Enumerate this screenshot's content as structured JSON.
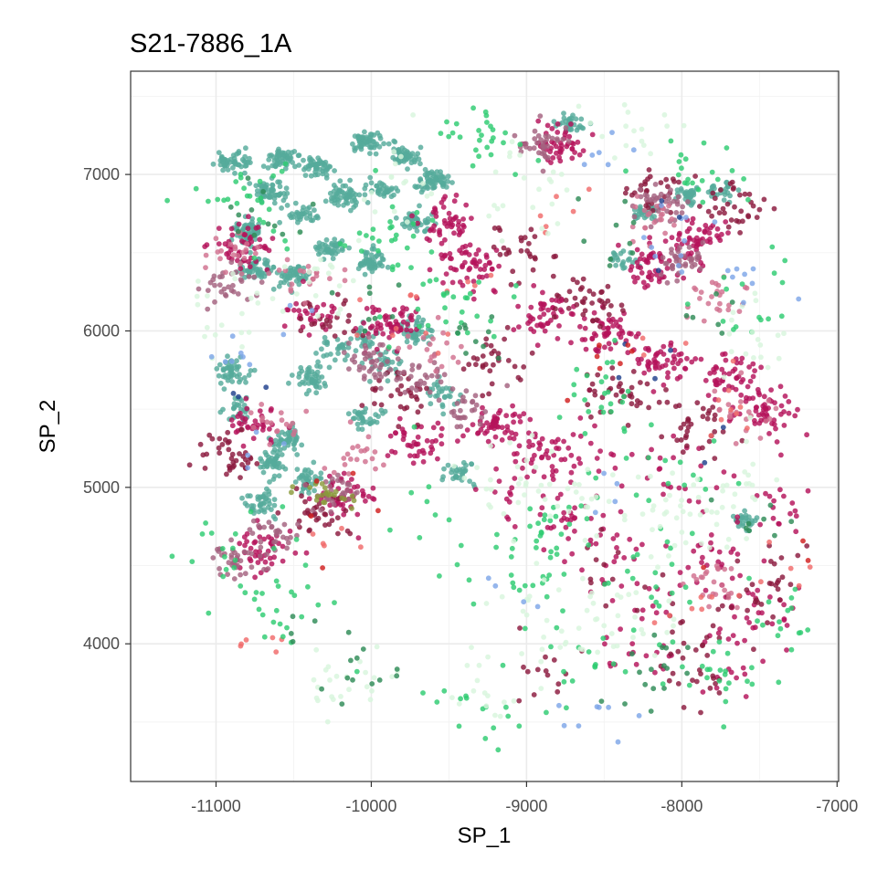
{
  "chart_data": {
    "type": "scatter",
    "title": "S21-7886_1A",
    "xlabel": "SP_1",
    "ylabel": "SP_2",
    "xlim": [
      -11550,
      -6990
    ],
    "ylim": [
      3120,
      7660
    ],
    "x_ticks": [
      -11000,
      -10000,
      -9000,
      -8000,
      -7000
    ],
    "x_tick_labels": [
      "-11000",
      "-10000",
      "-9000",
      "-8000",
      "-7000"
    ],
    "y_ticks": [
      4000,
      5000,
      6000,
      7000
    ],
    "y_tick_labels": [
      "4000",
      "5000",
      "6000",
      "7000"
    ],
    "x_minor_ticks": [
      -10500,
      -9500,
      -8500,
      -7500
    ],
    "y_minor_ticks": [
      3500,
      4500,
      5500,
      6500,
      7500
    ],
    "grid": true,
    "legend": "none",
    "palette": {
      "teal": "#56ab9b",
      "crimson": "#b5125a",
      "maroon": "#8b1a3e",
      "mauve": "#a3627f",
      "pink": "#d1708f",
      "salmon": "#f06a6a",
      "green": "#2ecc71",
      "mint": "#d8f5dd",
      "darkgreen": "#2e8b57",
      "blue": "#7ea6e8",
      "navy": "#1f3f8c",
      "olive": "#8a9a3a",
      "red": "#d11f1f"
    },
    "series": [
      {
        "color_key": "teal",
        "clusters": [
          {
            "points": [
              [
                -10890,
                7080
              ],
              [
                -10580,
                7100
              ],
              [
                -10360,
                7060
              ],
              [
                -10040,
                7210
              ],
              [
                -9800,
                7120
              ],
              [
                -9600,
                6950
              ],
              [
                -10180,
                6860
              ],
              [
                -10450,
                6750
              ],
              [
                -10800,
                6640
              ],
              [
                -10500,
                6350
              ],
              [
                -10250,
                6520
              ],
              [
                -10000,
                6450
              ],
              [
                -9700,
                6700
              ],
              [
                -9920,
                6900
              ],
              [
                -10650,
                6890
              ],
              [
                -10750,
                6400
              ]
            ],
            "n": 800,
            "sx": 55,
            "sy": 35
          },
          {
            "points": [
              [
                -10050,
                5950
              ],
              [
                -9900,
                5800
              ],
              [
                -10250,
                5900
              ],
              [
                -9700,
                6000
              ],
              [
                -10400,
                5700
              ],
              [
                -9550,
                5600
              ],
              [
                -9450,
                5100
              ],
              [
                -10050,
                5450
              ]
            ],
            "n": 260,
            "sx": 55,
            "sy": 40
          },
          {
            "points": [
              [
                -10550,
                5300
              ],
              [
                -10700,
                4900
              ],
              [
                -10850,
                5500
              ],
              [
                -10900,
                5750
              ],
              [
                -10400,
                5050
              ],
              [
                -10650,
                5150
              ]
            ],
            "n": 240,
            "sx": 45,
            "sy": 45
          },
          {
            "points": [
              [
                -8700,
                7330
              ],
              [
                -8250,
                6760
              ],
              [
                -7950,
                6870
              ],
              [
                -7750,
                6900
              ],
              [
                -8400,
                6450
              ],
              [
                -7600,
                4780
              ]
            ],
            "n": 170,
            "sx": 45,
            "sy": 30
          }
        ]
      },
      {
        "color_key": "crimson",
        "clusters": [
          {
            "points": [
              [
                -10850,
                6550
              ],
              [
                -10400,
                6100
              ],
              [
                -9900,
                6050
              ],
              [
                -9350,
                6400
              ],
              [
                -8900,
                6100
              ],
              [
                -8500,
                6000
              ],
              [
                -8100,
                5800
              ],
              [
                -7700,
                5700
              ],
              [
                -7500,
                5500
              ],
              [
                -10200,
                4950
              ],
              [
                -10700,
                4600
              ],
              [
                -8800,
                7200
              ],
              [
                -8200,
                6400
              ],
              [
                -7900,
                6600
              ],
              [
                -9200,
                5400
              ],
              [
                -8900,
                5200
              ],
              [
                -10750,
                5400
              ],
              [
                -9500,
                6700
              ],
              [
                -9700,
                5300
              ]
            ],
            "n": 900,
            "sx": 95,
            "sy": 75
          },
          {
            "points": [
              [
                -8200,
                4300
              ],
              [
                -7500,
                4200
              ],
              [
                -7700,
                3900
              ],
              [
                -8300,
                3900
              ],
              [
                -7800,
                4600
              ],
              [
                -8500,
                4600
              ],
              [
                -7400,
                4900
              ],
              [
                -8000,
                5100
              ],
              [
                -8800,
                4800
              ],
              [
                -9100,
                4900
              ],
              [
                -8600,
                5300
              ],
              [
                -7350,
                5400
              ]
            ],
            "n": 240,
            "sx": 150,
            "sy": 120
          }
        ]
      },
      {
        "color_key": "maroon",
        "clusters": [
          {
            "points": [
              [
                -10300,
                6100
              ],
              [
                -9800,
                5600
              ],
              [
                -9200,
                5800
              ],
              [
                -8600,
                6200
              ],
              [
                -8150,
                6900
              ],
              [
                -7650,
                6800
              ],
              [
                -10900,
                5200
              ],
              [
                -10350,
                4850
              ],
              [
                -7900,
                5400
              ],
              [
                -8400,
                5600
              ],
              [
                -9000,
                6500
              ]
            ],
            "n": 360,
            "sx": 110,
            "sy": 90
          },
          {
            "points": [
              [
                -7600,
                4200
              ],
              [
                -8000,
                4000
              ],
              [
                -8500,
                4500
              ],
              [
                -7400,
                4400
              ],
              [
                -8900,
                3850
              ],
              [
                -7800,
                3750
              ]
            ],
            "n": 90,
            "sx": 150,
            "sy": 130
          }
        ]
      },
      {
        "color_key": "mauve",
        "clusters": [
          {
            "points": [
              [
                -10250,
                4950
              ],
              [
                -10600,
                4700
              ],
              [
                -10850,
                4550
              ],
              [
                -10000,
                5800
              ],
              [
                -9700,
                5700
              ],
              [
                -8900,
                7200
              ],
              [
                -8150,
                6800
              ],
              [
                -8000,
                6450
              ],
              [
                -10900,
                6300
              ],
              [
                -9400,
                5500
              ]
            ],
            "n": 330,
            "sx": 85,
            "sy": 65
          }
        ]
      },
      {
        "color_key": "pink",
        "clusters": [
          {
            "points": [
              [
                -10900,
                6500
              ],
              [
                -10600,
                5400
              ],
              [
                -10100,
                5200
              ],
              [
                -9600,
                5900
              ],
              [
                -8200,
                6700
              ],
              [
                -7800,
                6200
              ],
              [
                -10400,
                6300
              ],
              [
                -7600,
                5500
              ],
              [
                -7800,
                4400
              ]
            ],
            "n": 190,
            "sx": 100,
            "sy": 80
          }
        ]
      },
      {
        "color_key": "salmon",
        "clusters": [
          {
            "points": [
              [
                -10200,
                4700
              ],
              [
                -9900,
                6100
              ],
              [
                -8800,
                6800
              ],
              [
                -8300,
                5900
              ],
              [
                -7700,
                5500
              ],
              [
                -10800,
                3970
              ],
              [
                -8000,
                4300
              ],
              [
                -7250,
                4500
              ],
              [
                -9400,
                6200
              ]
            ],
            "n": 55,
            "sx": 150,
            "sy": 120
          }
        ]
      },
      {
        "color_key": "green",
        "clusters": [
          {
            "points": [
              [
                -10800,
                6800
              ],
              [
                -9900,
                6600
              ],
              [
                -9300,
                7250
              ],
              [
                -9500,
                6100
              ],
              [
                -8500,
                5500
              ],
              [
                -8000,
                5000
              ],
              [
                -9000,
                4500
              ],
              [
                -8700,
                3900
              ],
              [
                -8200,
                4400
              ],
              [
                -9300,
                3600
              ],
              [
                -7800,
                3800
              ],
              [
                -7300,
                4100
              ],
              [
                -10500,
                4200
              ],
              [
                -10900,
                4600
              ],
              [
                -7600,
                6200
              ],
              [
                -7900,
                7000
              ],
              [
                -9700,
                4900
              ],
              [
                -8800,
                4700
              ]
            ],
            "n": 380,
            "sx": 170,
            "sy": 150
          }
        ]
      },
      {
        "color_key": "mint",
        "clusters": [
          {
            "points": [
              [
                -8600,
                4800
              ],
              [
                -8300,
                4200
              ],
              [
                -8900,
                4200
              ],
              [
                -9200,
                3800
              ],
              [
                -8000,
                4800
              ],
              [
                -7700,
                5000
              ],
              [
                -10300,
                6400
              ],
              [
                -9800,
                6900
              ],
              [
                -9000,
                6900
              ],
              [
                -8400,
                7300
              ],
              [
                -10900,
                6100
              ],
              [
                -7500,
                6000
              ],
              [
                -10200,
                3780
              ],
              [
                -9100,
                5000
              ]
            ],
            "n": 300,
            "sx": 170,
            "sy": 150
          }
        ]
      },
      {
        "color_key": "darkgreen",
        "clusters": [
          {
            "points": [
              [
                -10700,
                6700
              ],
              [
                -10000,
                6200
              ],
              [
                -8400,
                6600
              ],
              [
                -7800,
                6100
              ],
              [
                -8200,
                3800
              ],
              [
                -10300,
                4050
              ],
              [
                -10050,
                3800
              ],
              [
                -9300,
                5900
              ],
              [
                -7500,
                4800
              ]
            ],
            "n": 85,
            "sx": 140,
            "sy": 120
          }
        ]
      },
      {
        "color_key": "blue",
        "clusters": [
          {
            "points": [
              [
                -8200,
                6500
              ],
              [
                -7900,
                6700
              ],
              [
                -10900,
                5900
              ],
              [
                -10400,
                6100
              ],
              [
                -8600,
                5000
              ],
              [
                -9100,
                4350
              ],
              [
                -8550,
                3550
              ],
              [
                -8500,
                7150
              ],
              [
                -7550,
                6350
              ],
              [
                -10750,
                5200
              ]
            ],
            "n": 55,
            "sx": 110,
            "sy": 90
          }
        ]
      },
      {
        "color_key": "navy",
        "clusters": [
          {
            "points": [
              [
                -8300,
                5850
              ],
              [
                -7900,
                5250
              ],
              [
                -10800,
                5600
              ],
              [
                -8100,
                6600
              ],
              [
                -7500,
                6300
              ]
            ],
            "n": 12,
            "sx": 120,
            "sy": 100
          }
        ]
      },
      {
        "color_key": "olive",
        "clusters": [
          {
            "points": [
              [
                -10300,
                4950
              ],
              [
                -10150,
                4900
              ],
              [
                -10400,
                5000
              ]
            ],
            "n": 22,
            "sx": 50,
            "sy": 40
          }
        ]
      },
      {
        "color_key": "red",
        "clusters": [
          {
            "points": [
              [
                -10200,
                4700
              ],
              [
                -8850,
                5550
              ],
              [
                -8500,
                5800
              ],
              [
                -7950,
                4450
              ],
              [
                -10050,
                5000
              ],
              [
                -7250,
                4500
              ]
            ],
            "n": 16,
            "sx": 110,
            "sy": 90
          }
        ]
      }
    ]
  }
}
